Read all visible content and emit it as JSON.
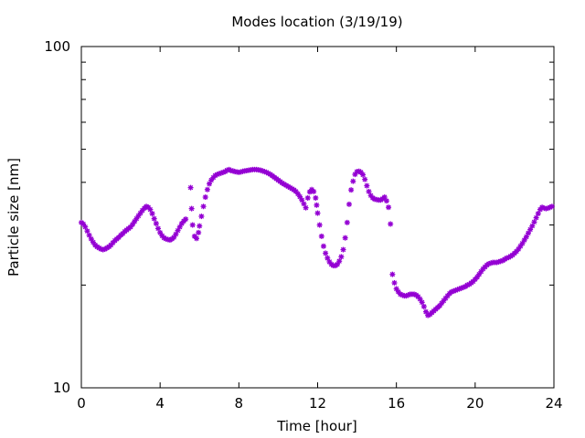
{
  "chart_data": {
    "type": "scatter",
    "title": "Modes location (3/19/19)",
    "xlabel": "Time [hour]",
    "ylabel": "Particle size [nm]",
    "xlim": [
      0,
      24
    ],
    "ylim": [
      10,
      100
    ],
    "yscale": "log",
    "grid": false,
    "legend": "none",
    "marker": "asterisk",
    "x_ticks": [
      0,
      4,
      8,
      12,
      16,
      20,
      24
    ],
    "x_tick_labels": [
      "0",
      "4",
      "8",
      "12",
      "16",
      "20",
      "24"
    ],
    "y_ticks": [
      10,
      100
    ],
    "y_tick_labels": [
      "10",
      "100"
    ],
    "series": [
      {
        "color": "#9400d3",
        "points": [
          [
            0.0,
            30.5
          ],
          [
            0.1,
            30.2
          ],
          [
            0.2,
            29.6
          ],
          [
            0.3,
            28.8
          ],
          [
            0.4,
            28.0
          ],
          [
            0.5,
            27.3
          ],
          [
            0.6,
            26.7
          ],
          [
            0.7,
            26.2
          ],
          [
            0.8,
            25.9
          ],
          [
            0.9,
            25.7
          ],
          [
            1.0,
            25.5
          ],
          [
            1.1,
            25.4
          ],
          [
            1.2,
            25.5
          ],
          [
            1.3,
            25.7
          ],
          [
            1.4,
            25.9
          ],
          [
            1.5,
            26.2
          ],
          [
            1.6,
            26.6
          ],
          [
            1.7,
            27.0
          ],
          [
            1.8,
            27.3
          ],
          [
            1.9,
            27.6
          ],
          [
            2.0,
            28.0
          ],
          [
            2.1,
            28.3
          ],
          [
            2.2,
            28.7
          ],
          [
            2.3,
            29.0
          ],
          [
            2.4,
            29.3
          ],
          [
            2.5,
            29.6
          ],
          [
            2.6,
            30.1
          ],
          [
            2.7,
            30.7
          ],
          [
            2.8,
            31.3
          ],
          [
            2.9,
            31.9
          ],
          [
            3.0,
            32.5
          ],
          [
            3.1,
            33.1
          ],
          [
            3.2,
            33.6
          ],
          [
            3.3,
            34.0
          ],
          [
            3.4,
            33.8
          ],
          [
            3.5,
            33.3
          ],
          [
            3.6,
            32.4
          ],
          [
            3.7,
            31.3
          ],
          [
            3.8,
            30.3
          ],
          [
            3.9,
            29.3
          ],
          [
            4.0,
            28.5
          ],
          [
            4.1,
            27.9
          ],
          [
            4.2,
            27.5
          ],
          [
            4.3,
            27.3
          ],
          [
            4.4,
            27.2
          ],
          [
            4.5,
            27.1
          ],
          [
            4.6,
            27.3
          ],
          [
            4.7,
            27.6
          ],
          [
            4.8,
            28.2
          ],
          [
            4.9,
            28.9
          ],
          [
            5.0,
            29.6
          ],
          [
            5.1,
            30.3
          ],
          [
            5.2,
            30.8
          ],
          [
            5.3,
            31.2
          ],
          [
            5.55,
            38.6
          ],
          [
            5.6,
            33.5
          ],
          [
            5.65,
            30.0
          ],
          [
            5.75,
            27.8
          ],
          [
            5.85,
            27.4
          ],
          [
            5.95,
            28.5
          ],
          [
            6.0,
            29.8
          ],
          [
            6.1,
            31.8
          ],
          [
            6.2,
            34.0
          ],
          [
            6.3,
            36.2
          ],
          [
            6.4,
            38.1
          ],
          [
            6.5,
            39.6
          ],
          [
            6.6,
            40.6
          ],
          [
            6.7,
            41.3
          ],
          [
            6.8,
            41.9
          ],
          [
            6.9,
            42.2
          ],
          [
            7.0,
            42.4
          ],
          [
            7.1,
            42.6
          ],
          [
            7.2,
            42.8
          ],
          [
            7.3,
            43.0
          ],
          [
            7.4,
            43.4
          ],
          [
            7.5,
            43.6
          ],
          [
            7.6,
            43.3
          ],
          [
            7.7,
            43.2
          ],
          [
            7.8,
            43.0
          ],
          [
            7.9,
            42.9
          ],
          [
            8.0,
            42.8
          ],
          [
            8.1,
            42.9
          ],
          [
            8.2,
            43.1
          ],
          [
            8.3,
            43.2
          ],
          [
            8.4,
            43.3
          ],
          [
            8.5,
            43.4
          ],
          [
            8.6,
            43.5
          ],
          [
            8.7,
            43.6
          ],
          [
            8.8,
            43.6
          ],
          [
            8.9,
            43.6
          ],
          [
            9.0,
            43.5
          ],
          [
            9.1,
            43.4
          ],
          [
            9.2,
            43.2
          ],
          [
            9.3,
            43.0
          ],
          [
            9.4,
            42.8
          ],
          [
            9.5,
            42.5
          ],
          [
            9.6,
            42.2
          ],
          [
            9.7,
            41.8
          ],
          [
            9.8,
            41.4
          ],
          [
            9.9,
            41.0
          ],
          [
            10.0,
            40.6
          ],
          [
            10.1,
            40.2
          ],
          [
            10.2,
            39.8
          ],
          [
            10.3,
            39.5
          ],
          [
            10.4,
            39.2
          ],
          [
            10.5,
            38.9
          ],
          [
            10.6,
            38.6
          ],
          [
            10.7,
            38.3
          ],
          [
            10.8,
            38.0
          ],
          [
            10.9,
            37.6
          ],
          [
            11.0,
            37.0
          ],
          [
            11.1,
            36.3
          ],
          [
            11.2,
            35.5
          ],
          [
            11.3,
            34.6
          ],
          [
            11.4,
            33.7
          ],
          [
            11.5,
            36.0
          ],
          [
            11.6,
            37.5
          ],
          [
            11.7,
            38.1
          ],
          [
            11.8,
            37.6
          ],
          [
            11.9,
            36.0
          ],
          [
            11.95,
            34.3
          ],
          [
            12.0,
            32.5
          ],
          [
            12.1,
            30.0
          ],
          [
            12.2,
            27.8
          ],
          [
            12.3,
            26.0
          ],
          [
            12.4,
            24.8
          ],
          [
            12.5,
            24.0
          ],
          [
            12.6,
            23.4
          ],
          [
            12.7,
            23.0
          ],
          [
            12.8,
            22.8
          ],
          [
            12.9,
            22.8
          ],
          [
            13.0,
            23.0
          ],
          [
            13.1,
            23.5
          ],
          [
            13.2,
            24.2
          ],
          [
            13.3,
            25.4
          ],
          [
            13.4,
            27.5
          ],
          [
            13.5,
            30.5
          ],
          [
            13.6,
            34.5
          ],
          [
            13.7,
            38.0
          ],
          [
            13.8,
            40.3
          ],
          [
            13.9,
            42.2
          ],
          [
            14.0,
            43.0
          ],
          [
            14.1,
            43.1
          ],
          [
            14.2,
            42.8
          ],
          [
            14.3,
            42.1
          ],
          [
            14.4,
            40.8
          ],
          [
            14.5,
            39.1
          ],
          [
            14.6,
            37.6
          ],
          [
            14.7,
            36.6
          ],
          [
            14.8,
            36.0
          ],
          [
            14.9,
            35.7
          ],
          [
            15.0,
            35.6
          ],
          [
            15.1,
            35.5
          ],
          [
            15.2,
            35.5
          ],
          [
            15.3,
            35.8
          ],
          [
            15.4,
            36.2
          ],
          [
            15.5,
            35.3
          ],
          [
            15.6,
            33.8
          ],
          [
            15.7,
            30.2
          ],
          [
            15.8,
            21.5
          ],
          [
            15.9,
            20.3
          ],
          [
            16.0,
            19.5
          ],
          [
            16.1,
            19.1
          ],
          [
            16.2,
            18.8
          ],
          [
            16.3,
            18.7
          ],
          [
            16.4,
            18.6
          ],
          [
            16.5,
            18.6
          ],
          [
            16.6,
            18.7
          ],
          [
            16.7,
            18.8
          ],
          [
            16.8,
            18.8
          ],
          [
            16.9,
            18.8
          ],
          [
            17.0,
            18.7
          ],
          [
            17.1,
            18.5
          ],
          [
            17.2,
            18.2
          ],
          [
            17.3,
            17.8
          ],
          [
            17.4,
            17.3
          ],
          [
            17.5,
            16.7
          ],
          [
            17.6,
            16.3
          ],
          [
            17.7,
            16.4
          ],
          [
            17.8,
            16.6
          ],
          [
            17.9,
            16.8
          ],
          [
            18.0,
            17.0
          ],
          [
            18.1,
            17.2
          ],
          [
            18.2,
            17.4
          ],
          [
            18.3,
            17.7
          ],
          [
            18.4,
            18.0
          ],
          [
            18.5,
            18.3
          ],
          [
            18.6,
            18.6
          ],
          [
            18.7,
            18.9
          ],
          [
            18.8,
            19.1
          ],
          [
            18.9,
            19.2
          ],
          [
            19.0,
            19.3
          ],
          [
            19.1,
            19.4
          ],
          [
            19.2,
            19.5
          ],
          [
            19.3,
            19.6
          ],
          [
            19.4,
            19.7
          ],
          [
            19.5,
            19.8
          ],
          [
            19.6,
            20.0
          ],
          [
            19.7,
            20.1
          ],
          [
            19.8,
            20.3
          ],
          [
            19.9,
            20.5
          ],
          [
            20.0,
            20.8
          ],
          [
            20.1,
            21.1
          ],
          [
            20.2,
            21.5
          ],
          [
            20.3,
            21.9
          ],
          [
            20.4,
            22.3
          ],
          [
            20.5,
            22.6
          ],
          [
            20.6,
            22.9
          ],
          [
            20.7,
            23.1
          ],
          [
            20.8,
            23.2
          ],
          [
            20.9,
            23.3
          ],
          [
            21.0,
            23.3
          ],
          [
            21.1,
            23.3
          ],
          [
            21.2,
            23.4
          ],
          [
            21.3,
            23.5
          ],
          [
            21.4,
            23.6
          ],
          [
            21.5,
            23.8
          ],
          [
            21.6,
            24.0
          ],
          [
            21.7,
            24.1
          ],
          [
            21.8,
            24.3
          ],
          [
            21.9,
            24.5
          ],
          [
            22.0,
            24.8
          ],
          [
            22.1,
            25.1
          ],
          [
            22.2,
            25.5
          ],
          [
            22.3,
            26.0
          ],
          [
            22.4,
            26.5
          ],
          [
            22.5,
            27.1
          ],
          [
            22.6,
            27.7
          ],
          [
            22.7,
            28.4
          ],
          [
            22.8,
            29.1
          ],
          [
            22.9,
            29.8
          ],
          [
            23.0,
            30.6
          ],
          [
            23.1,
            31.5
          ],
          [
            23.2,
            32.4
          ],
          [
            23.3,
            33.3
          ],
          [
            23.4,
            33.8
          ],
          [
            23.5,
            33.6
          ],
          [
            23.6,
            33.5
          ],
          [
            23.7,
            33.6
          ],
          [
            23.8,
            33.8
          ],
          [
            23.9,
            34.0
          ]
        ]
      }
    ]
  }
}
